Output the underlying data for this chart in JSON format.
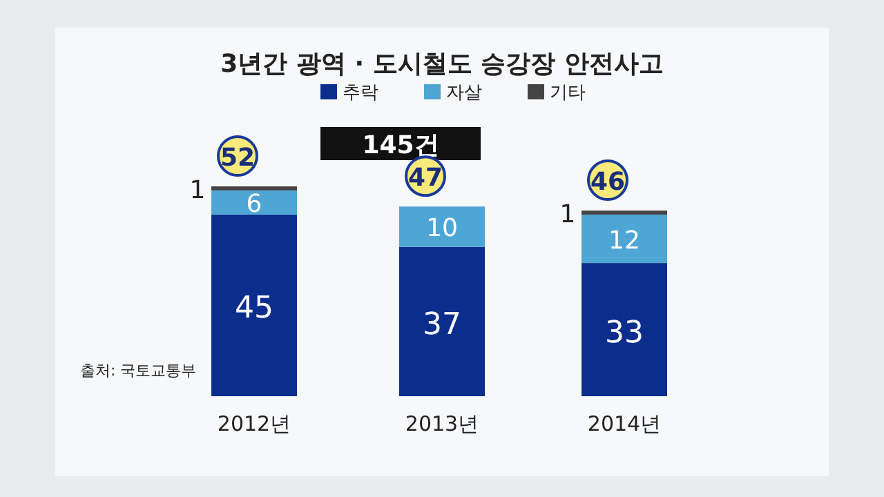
{
  "chart_data": {
    "type": "bar",
    "stacked": true,
    "title": "3년간 광역 · 도시철도 승강장 안전사고",
    "categories": [
      "2012년",
      "2013년",
      "2014년"
    ],
    "series": [
      {
        "name": "추락",
        "color": "#0b2d8c",
        "values": [
          45,
          37,
          33
        ],
        "value_labels": [
          "45",
          "37",
          "33"
        ]
      },
      {
        "name": "자살",
        "color": "#4ea6d4",
        "values": [
          6,
          10,
          12
        ],
        "value_labels": [
          "6",
          "10",
          "12"
        ]
      },
      {
        "name": "기타",
        "color": "#444444",
        "values": [
          1,
          0,
          1
        ],
        "value_labels": [
          "1",
          null,
          "1"
        ]
      }
    ],
    "totals": [
      "52",
      "47",
      "46"
    ],
    "legend": "top",
    "annotations": [
      "145건",
      "출처: 국토교통부"
    ]
  }
}
